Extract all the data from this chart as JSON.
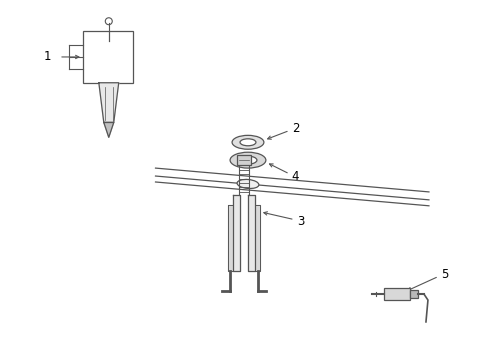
{
  "bg_color": "#ffffff",
  "line_color": "#555555",
  "fig_width": 4.89,
  "fig_height": 3.6,
  "dpi": 100,
  "label_fontsize": 8.5,
  "xlim": [
    0,
    489
  ],
  "ylim": [
    0,
    360
  ]
}
